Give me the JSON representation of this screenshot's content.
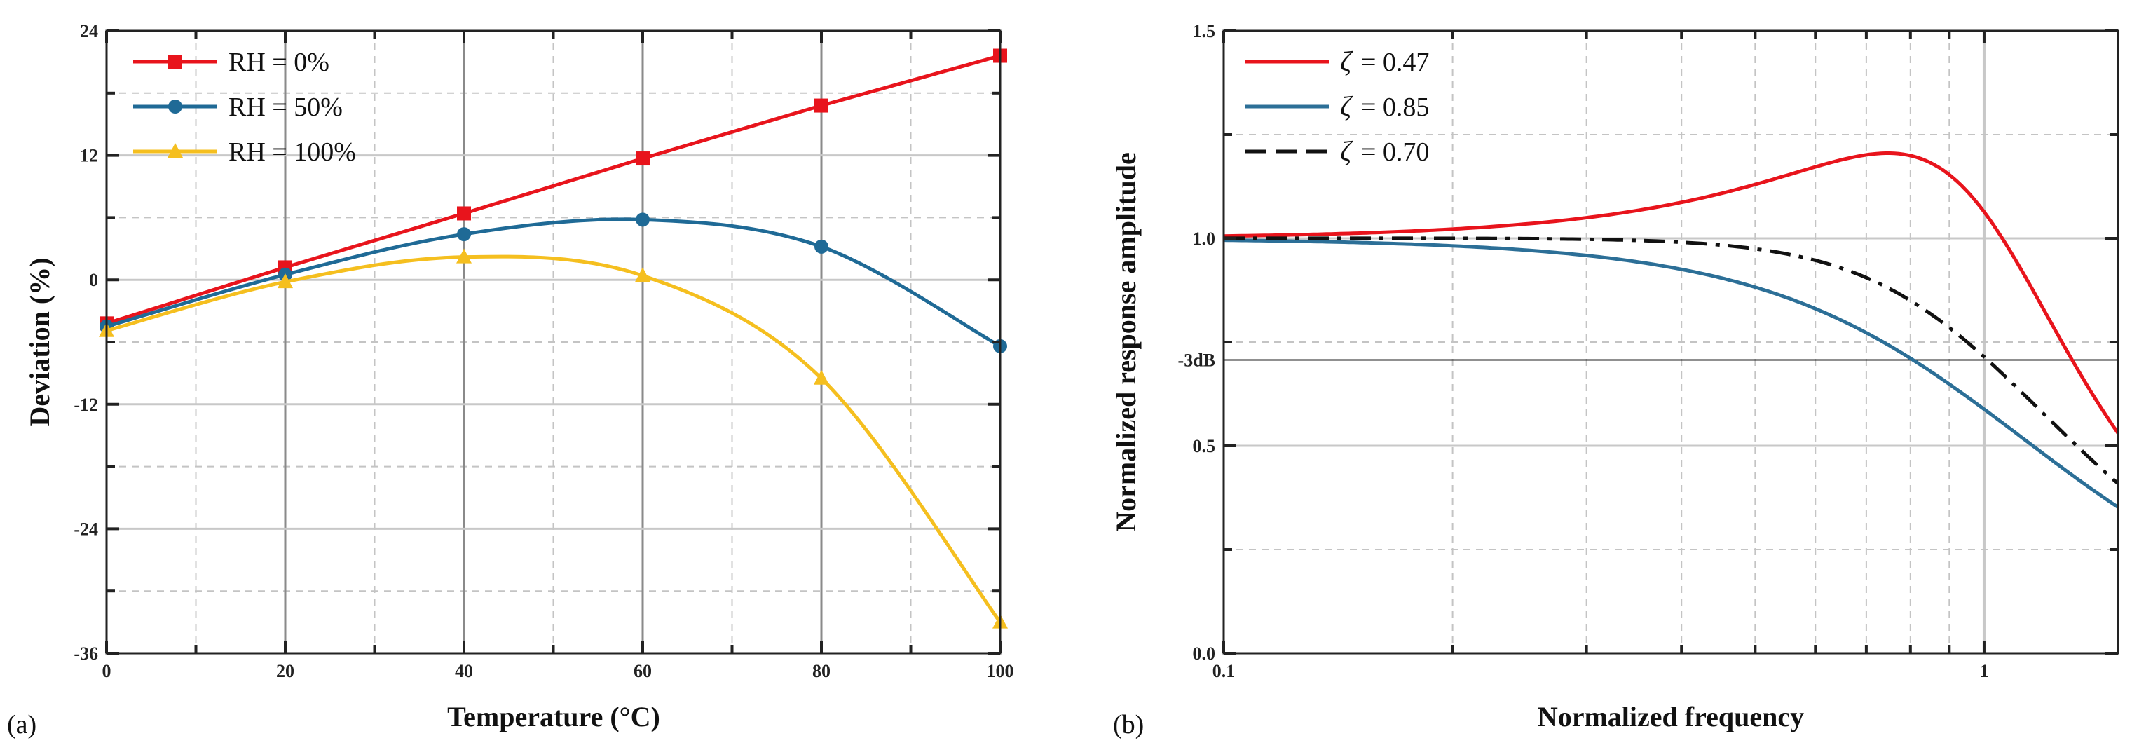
{
  "chart_data": [
    {
      "type": "line",
      "panel_label": "(a)",
      "xlabel": "Temperature (°C)",
      "ylabel": "Deviation (%)",
      "xlim": [
        0,
        100
      ],
      "ylim": [
        -36,
        24
      ],
      "xticks": [
        0,
        20,
        40,
        60,
        80,
        100
      ],
      "yticks": [
        -36,
        -24,
        -12,
        0,
        12,
        24
      ],
      "grid": true,
      "legend_position": "top-left",
      "series": [
        {
          "name": "RH = 0%",
          "color": "#e8141c",
          "marker": "square",
          "x": [
            0,
            20,
            40,
            60,
            80,
            100
          ],
          "y": [
            -4.2,
            1.2,
            6.4,
            11.7,
            16.8,
            21.6
          ]
        },
        {
          "name": "RH = 50%",
          "color": "#1f6a96",
          "marker": "circle",
          "x": [
            0,
            20,
            40,
            60,
            80,
            100
          ],
          "y": [
            -4.5,
            0.5,
            4.4,
            5.8,
            3.2,
            -6.4
          ]
        },
        {
          "name": "RH = 100%",
          "color": "#f5bf1f",
          "marker": "triangle",
          "x": [
            0,
            20,
            40,
            60,
            80,
            100
          ],
          "y": [
            -4.9,
            -0.2,
            2.2,
            0.4,
            -9.5,
            -33.0
          ]
        }
      ]
    },
    {
      "type": "line",
      "panel_label": "(b)",
      "xlabel": "Normalized frequency",
      "ylabel": "Normalized response amplitude",
      "xscale": "log",
      "xlim": [
        0.1,
        1.5
      ],
      "ylim": [
        0.0,
        1.5
      ],
      "xtick_labels": [
        "0.1",
        "1"
      ],
      "yticks": [
        0.0,
        0.5,
        1.0,
        1.5
      ],
      "yticks_labels": [
        "0.0",
        "0.5",
        "1.0",
        "1.5"
      ],
      "reference_line": {
        "label": "-3dB",
        "y": 0.707
      },
      "grid": true,
      "legend_position": "top-left",
      "series": [
        {
          "name": "ζ = 0.47",
          "symbol": "ζ",
          "value_text": "= 0.47",
          "color": "#e8141c",
          "dash": "solid"
        },
        {
          "name": "ζ = 0.85",
          "symbol": "ζ",
          "value_text": "= 0.85",
          "color": "#2c6f97",
          "dash": "solid"
        },
        {
          "name": "ζ = 0.70",
          "symbol": "ζ",
          "value_text": "= 0.70",
          "color": "#111111",
          "dash": "dashdot"
        }
      ]
    }
  ]
}
